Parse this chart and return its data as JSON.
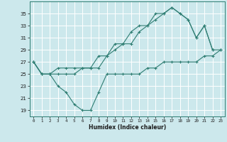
{
  "title": "",
  "xlabel": "Humidex (Indice chaleur)",
  "bg_color": "#cce8ec",
  "grid_color": "#ffffff",
  "line_color": "#2e7d72",
  "xlim": [
    -0.5,
    23.5
  ],
  "ylim": [
    18,
    37
  ],
  "yticks": [
    19,
    21,
    23,
    25,
    27,
    29,
    31,
    33,
    35
  ],
  "xticks": [
    0,
    1,
    2,
    3,
    4,
    5,
    6,
    7,
    8,
    9,
    10,
    11,
    12,
    13,
    14,
    15,
    16,
    17,
    18,
    19,
    20,
    21,
    22,
    23
  ],
  "line1_x": [
    0,
    1,
    2,
    3,
    4,
    5,
    6,
    7,
    8,
    9,
    10,
    11,
    12,
    13,
    14,
    15,
    16,
    17,
    18,
    19,
    20,
    21,
    22
  ],
  "line1_y": [
    27,
    25,
    25,
    26,
    26,
    26,
    26,
    26,
    28,
    28,
    30,
    30,
    32,
    33,
    33,
    35,
    35,
    36,
    35,
    34,
    31,
    33,
    29
  ],
  "line2_x": [
    0,
    1,
    2,
    3,
    4,
    5,
    6,
    7,
    8,
    9,
    10,
    11,
    12,
    13,
    14,
    15,
    16,
    17,
    18,
    19,
    20,
    21,
    22,
    23
  ],
  "line2_y": [
    27,
    25,
    25,
    25,
    25,
    25,
    26,
    26,
    26,
    28,
    29,
    30,
    30,
    32,
    33,
    34,
    35,
    36,
    35,
    34,
    31,
    33,
    29,
    29
  ],
  "line3_x": [
    0,
    1,
    2,
    3,
    4,
    5,
    6,
    7,
    8,
    9,
    10,
    11,
    12,
    13,
    14,
    15,
    16,
    17,
    18,
    19,
    20,
    21,
    22,
    23
  ],
  "line3_y": [
    27,
    25,
    25,
    23,
    22,
    20,
    19,
    19,
    22,
    25,
    25,
    25,
    25,
    25,
    26,
    26,
    27,
    27,
    27,
    27,
    27,
    28,
    28,
    29
  ]
}
